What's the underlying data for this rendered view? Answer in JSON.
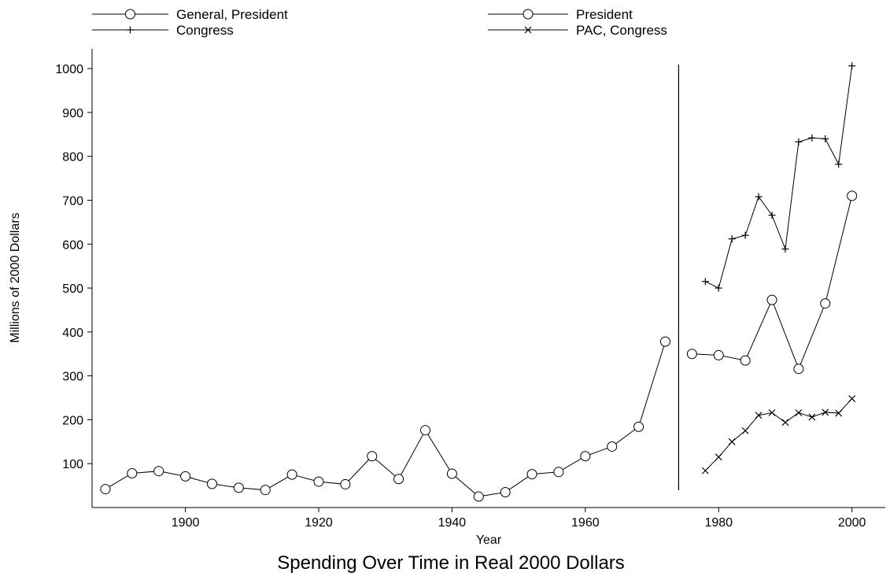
{
  "chart_data": {
    "type": "line",
    "title": "Spending Over Time in Real 2000 Dollars",
    "xlabel": "Year",
    "ylabel": "Millions of 2000 Dollars",
    "xlim": [
      1886,
      2005
    ],
    "ylim": [
      0,
      1045
    ],
    "xticks": [
      1900,
      1920,
      1940,
      1960,
      1980,
      2000
    ],
    "yticks": [
      100,
      200,
      300,
      400,
      500,
      600,
      700,
      800,
      900,
      1000
    ],
    "grid": false,
    "legend_position": "top",
    "divider_x": 1974,
    "series": [
      {
        "name": "General, President",
        "marker": "circle",
        "points": [
          [
            1888,
            42
          ],
          [
            1892,
            78
          ],
          [
            1896,
            83
          ],
          [
            1900,
            71
          ],
          [
            1904,
            54
          ],
          [
            1908,
            45
          ],
          [
            1912,
            40
          ],
          [
            1916,
            75
          ],
          [
            1920,
            59
          ],
          [
            1924,
            53
          ],
          [
            1928,
            117
          ],
          [
            1932,
            65
          ],
          [
            1936,
            176
          ],
          [
            1940,
            77
          ],
          [
            1944,
            25
          ],
          [
            1948,
            35
          ],
          [
            1952,
            76
          ],
          [
            1956,
            81
          ],
          [
            1960,
            117
          ],
          [
            1964,
            139
          ],
          [
            1968,
            184
          ],
          [
            1972,
            378
          ]
        ]
      },
      {
        "name": "President",
        "marker": "circle",
        "points": [
          [
            1976,
            350
          ],
          [
            1980,
            347
          ],
          [
            1984,
            335
          ],
          [
            1988,
            473
          ],
          [
            1992,
            316
          ],
          [
            1996,
            465
          ],
          [
            2000,
            710
          ]
        ]
      },
      {
        "name": "Congress",
        "marker": "plus",
        "points": [
          [
            1978,
            515
          ],
          [
            1980,
            500
          ],
          [
            1982,
            612
          ],
          [
            1984,
            620
          ],
          [
            1986,
            708
          ],
          [
            1988,
            666
          ],
          [
            1990,
            589
          ],
          [
            1992,
            833
          ],
          [
            1994,
            842
          ],
          [
            1996,
            840
          ],
          [
            1998,
            782
          ],
          [
            2000,
            1006
          ]
        ]
      },
      {
        "name": "PAC, Congress",
        "marker": "cross",
        "points": [
          [
            1978,
            84
          ],
          [
            1980,
            115
          ],
          [
            1982,
            150
          ],
          [
            1984,
            175
          ],
          [
            1986,
            210
          ],
          [
            1988,
            216
          ],
          [
            1990,
            194
          ],
          [
            1992,
            216
          ],
          [
            1994,
            206
          ],
          [
            1996,
            217
          ],
          [
            1998,
            215
          ],
          [
            2000,
            248
          ]
        ]
      }
    ]
  }
}
